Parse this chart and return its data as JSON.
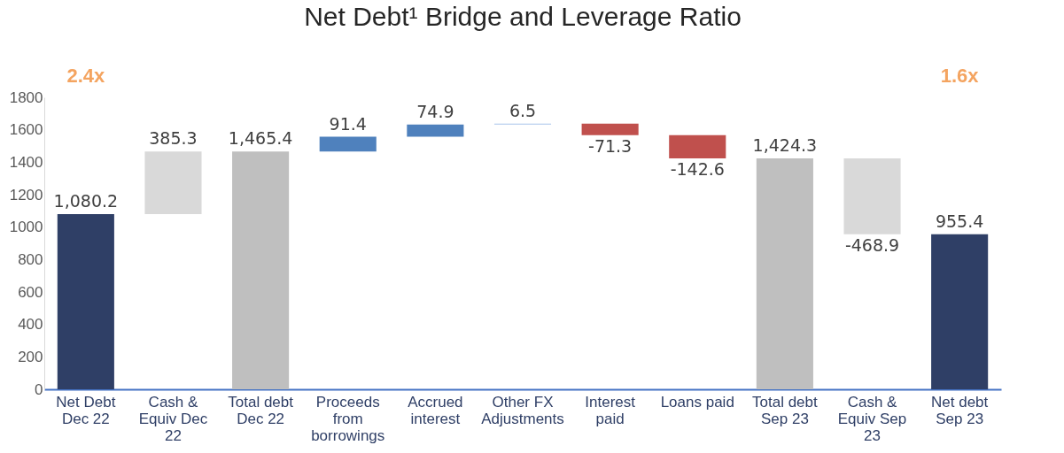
{
  "chart_data": {
    "type": "bar",
    "title": "Net Debt¹ Bridge and Leverage Ratio",
    "categories": [
      "Net Debt Dec 22",
      "Cash & Equiv Dec 22",
      "Total debt Dec 22",
      "Proceeds from borrowings",
      "Accrued interest",
      "Other FX Adjustments",
      "Interest paid",
      "Loans paid",
      "Total debt Sep 23",
      "Cash & Equiv Sep 23",
      "Net debt Sep 23"
    ],
    "values": [
      1080.2,
      385.3,
      1465.4,
      91.4,
      74.9,
      6.5,
      -71.3,
      -142.6,
      1424.3,
      -468.9,
      955.4
    ],
    "base": [
      0,
      1080.2,
      0,
      1465.4,
      1556.8,
      1631.7,
      1638.2,
      1566.9,
      0,
      1424.3,
      0
    ],
    "colors": [
      "#2f3f66",
      "#d9d9d9",
      "#bfbfbf",
      "#4f81bd",
      "#4f81bd",
      "#a9c4eb",
      "#c0504d",
      "#c0504d",
      "#bfbfbf",
      "#d9d9d9",
      "#2f3f66"
    ],
    "value_labels": [
      "1,080.2",
      "385.3",
      "1,465.4",
      "91.4",
      "74.9",
      "6.5",
      "-71.3",
      "-142.6",
      "1,424.3",
      "-468.9",
      "955.4"
    ],
    "ylim": [
      0,
      1800
    ],
    "yticks": [
      0,
      200,
      400,
      600,
      800,
      1000,
      1200,
      1400,
      1600,
      1800
    ],
    "grid": false,
    "annotations": [
      "2.4x",
      "1.6x"
    ]
  }
}
